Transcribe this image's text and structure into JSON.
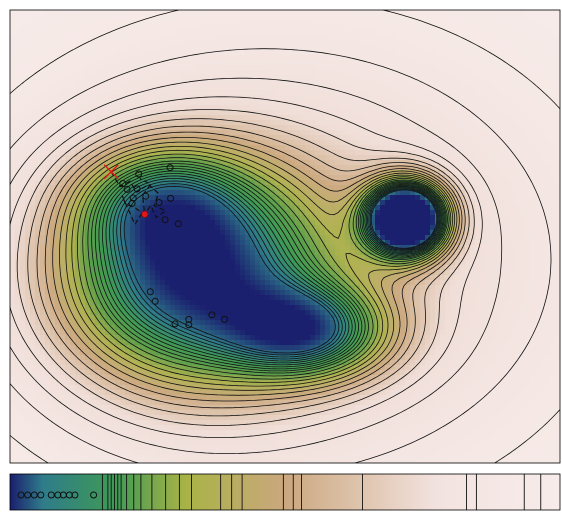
{
  "colors": {
    "deep": "#1a1f6e",
    "teal": "#2f7c8a",
    "green": "#3f9a55",
    "olive": "#a9b346",
    "tan": "#cba77e",
    "pale": "#f3e3e0",
    "background": "#f7ecea",
    "contour": "#111111",
    "marker": "#e01818",
    "path": "#111111"
  },
  "main_panel": {
    "contour_levels": [
      0.04,
      0.08,
      0.12,
      0.16,
      0.2,
      0.24,
      0.28,
      0.32,
      0.36,
      0.4,
      0.44,
      0.48,
      0.52,
      0.56,
      0.6,
      0.63,
      0.66,
      0.69,
      0.72,
      0.75,
      0.78,
      0.81,
      0.84,
      0.87,
      0.9
    ],
    "samples": [
      [
        0.205,
        0.383
      ],
      [
        0.213,
        0.396
      ],
      [
        0.231,
        0.395
      ],
      [
        0.224,
        0.415
      ],
      [
        0.222,
        0.427
      ],
      [
        0.247,
        0.411
      ],
      [
        0.271,
        0.425
      ],
      [
        0.282,
        0.463
      ],
      [
        0.234,
        0.362
      ],
      [
        0.291,
        0.348
      ],
      [
        0.306,
        0.472
      ],
      [
        0.255,
        0.622
      ],
      [
        0.264,
        0.643
      ],
      [
        0.3,
        0.693
      ],
      [
        0.325,
        0.683
      ],
      [
        0.325,
        0.695
      ],
      [
        0.367,
        0.673
      ],
      [
        0.39,
        0.683
      ],
      [
        0.292,
        0.416
      ]
    ],
    "trajectory": [
      [
        0.184,
        0.357
      ],
      [
        0.2,
        0.39
      ],
      [
        0.218,
        0.378
      ],
      [
        0.23,
        0.402
      ],
      [
        0.252,
        0.385
      ],
      [
        0.27,
        0.405
      ],
      [
        0.262,
        0.432
      ],
      [
        0.283,
        0.443
      ],
      [
        0.266,
        0.458
      ],
      [
        0.256,
        0.432
      ],
      [
        0.244,
        0.451
      ],
      [
        0.228,
        0.437
      ],
      [
        0.21,
        0.428
      ],
      [
        0.204,
        0.41
      ],
      [
        0.227,
        0.473
      ],
      [
        0.244,
        0.441
      ],
      [
        0.241,
        0.409
      ],
      [
        0.256,
        0.385
      ],
      [
        0.236,
        0.372
      ]
    ],
    "start_marker": [
      0.184,
      0.357
    ],
    "end_marker": [
      0.245,
      0.451
    ]
  },
  "strip_panel": {
    "circle_markers_x": [
      0.02,
      0.032,
      0.044,
      0.056,
      0.075,
      0.087,
      0.097,
      0.108,
      0.118,
      0.152
    ],
    "vertical_lines_x": [
      0.168,
      0.178,
      0.184,
      0.19,
      0.196,
      0.202,
      0.212,
      0.225,
      0.238,
      0.258,
      0.283,
      0.308,
      0.33,
      0.383,
      0.403,
      0.422,
      0.497,
      0.515,
      0.53,
      0.641,
      0.83,
      0.848,
      0.935,
      0.965
    ]
  }
}
